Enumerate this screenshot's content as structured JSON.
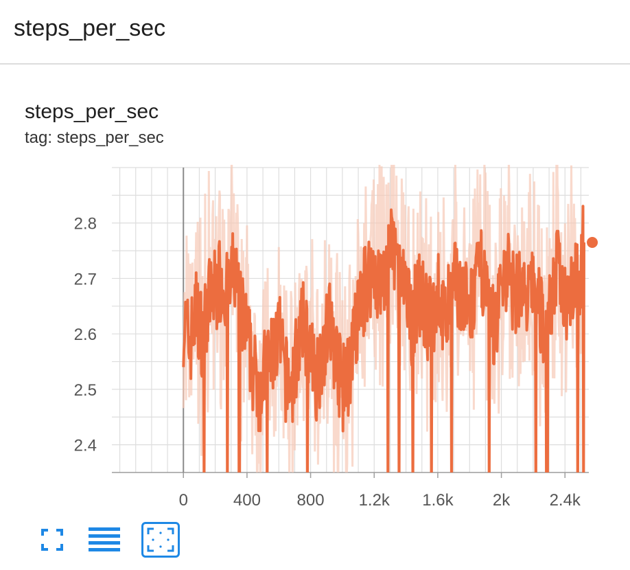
{
  "header": {
    "title": "steps_per_sec"
  },
  "card": {
    "title": "steps_per_sec",
    "tag": "tag: steps_per_sec"
  },
  "colors": {
    "accent": "#ec6d3f",
    "raw": "#f6c9b6",
    "grid": "#dddddd",
    "toolbar_icon": "#1e88e5"
  },
  "toolbar": {
    "buttons": [
      {
        "name": "expand-icon",
        "active": false
      },
      {
        "name": "data-selection-icon",
        "active": false
      },
      {
        "name": "fit-domain-icon",
        "active": true
      }
    ]
  },
  "chart_data": {
    "type": "line",
    "title": "steps_per_sec",
    "xlabel": "",
    "ylabel": "",
    "xlim": [
      -450,
      2550
    ],
    "ylim": [
      2.35,
      2.9
    ],
    "x_ticks": [
      0,
      400,
      800,
      1200,
      1600,
      2000,
      2400
    ],
    "x_tick_labels": [
      "0",
      "400",
      "800",
      "1.2k",
      "1.6k",
      "2k",
      "2.4k"
    ],
    "y_ticks": [
      2.4,
      2.5,
      2.6,
      2.7,
      2.8
    ],
    "y_tick_labels": [
      "2.4",
      "2.5",
      "2.6",
      "2.7",
      "2.8"
    ],
    "grid": true,
    "last_point": {
      "x": 2520,
      "y": 2.765
    },
    "series": [
      {
        "smoothed": true,
        "x": [
          0,
          40,
          80,
          120,
          160,
          200,
          240,
          280,
          320,
          360,
          400,
          440,
          480,
          520,
          560,
          600,
          640,
          680,
          720,
          760,
          800,
          840,
          880,
          920,
          960,
          1000,
          1040,
          1080,
          1120,
          1160,
          1200,
          1240,
          1280,
          1320,
          1360,
          1400,
          1440,
          1480,
          1520,
          1560,
          1600,
          1640,
          1680,
          1720,
          1760,
          1800,
          1840,
          1880,
          1920,
          1960,
          2000,
          2040,
          2080,
          2120,
          2160,
          2200,
          2240,
          2280,
          2320,
          2360,
          2400,
          2440,
          2480,
          2520
        ],
        "y": [
          2.62,
          2.58,
          2.64,
          2.6,
          2.66,
          2.68,
          2.7,
          2.66,
          2.72,
          2.64,
          2.6,
          2.53,
          2.5,
          2.54,
          2.56,
          2.6,
          2.52,
          2.5,
          2.58,
          2.62,
          2.55,
          2.52,
          2.58,
          2.62,
          2.56,
          2.5,
          2.53,
          2.6,
          2.66,
          2.7,
          2.72,
          2.68,
          2.72,
          2.76,
          2.7,
          2.66,
          2.62,
          2.68,
          2.64,
          2.62,
          2.68,
          2.62,
          2.66,
          2.7,
          2.66,
          2.64,
          2.68,
          2.72,
          2.64,
          2.6,
          2.7,
          2.72,
          2.66,
          2.7,
          2.64,
          2.7,
          2.64,
          2.6,
          2.68,
          2.72,
          2.66,
          2.7,
          2.68,
          2.765
        ]
      }
    ]
  }
}
